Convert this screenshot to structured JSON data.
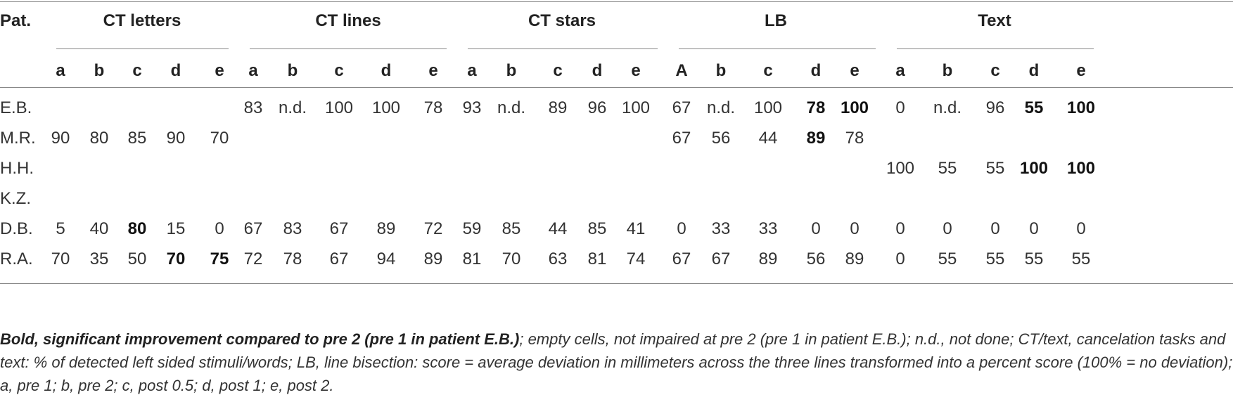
{
  "table": {
    "patient_header": "Pat.",
    "groups": [
      "CT letters",
      "CT lines",
      "CT stars",
      "LB",
      "Text"
    ],
    "subheaders": [
      [
        "a",
        "b",
        "c",
        "d",
        "e"
      ],
      [
        "a",
        "b",
        "c",
        "d",
        "e"
      ],
      [
        "a",
        "b",
        "c",
        "d",
        "e"
      ],
      [
        "A",
        "b",
        "c",
        "d",
        "e"
      ],
      [
        "a",
        "b",
        "c",
        "d",
        "e"
      ]
    ],
    "rows": [
      {
        "patient": "E.B.",
        "cells": [
          "",
          "",
          "",
          "",
          "",
          "83",
          "n.d.",
          "100",
          "100",
          "78",
          "93",
          "n.d.",
          "89",
          "96",
          "100",
          "67",
          "n.d.",
          "100",
          "78",
          "100",
          "0",
          "n.d.",
          "96",
          "55",
          "100"
        ],
        "bold": [
          18,
          19,
          23,
          24,
          29,
          32,
          34,
          37,
          38
        ]
      },
      {
        "patient": "M.R.",
        "cells": [
          "90",
          "80",
          "85",
          "90",
          "70",
          "",
          "",
          "",
          "",
          "",
          "",
          "",
          "",
          "",
          "",
          "67",
          "56",
          "44",
          "89",
          "78",
          "",
          "",
          "",
          "",
          ""
        ],
        "bold": [
          18
        ]
      },
      {
        "patient": "H.H.",
        "cells": [
          "",
          "",
          "",
          "",
          "",
          "",
          "",
          "",
          "",
          "",
          "",
          "",
          "",
          "",
          "",
          "",
          "",
          "",
          "",
          "",
          "100",
          "55",
          "55",
          "100",
          "100"
        ],
        "bold": [
          23,
          24
        ]
      },
      {
        "patient": "K.Z.",
        "cells": [
          "",
          "",
          "",
          "",
          "",
          "",
          "",
          "",
          "",
          "",
          "",
          "",
          "",
          "",
          "",
          "",
          "",
          "",
          "",
          "",
          "",
          "",
          "",
          "",
          ""
        ],
        "bold": []
      },
      {
        "patient": "D.B.",
        "cells": [
          "5",
          "40",
          "80",
          "15",
          "0",
          "67",
          "83",
          "67",
          "89",
          "72",
          "59",
          "85",
          "44",
          "85",
          "41",
          "0",
          "33",
          "33",
          "0",
          "0",
          "0",
          "0",
          "0",
          "0",
          "0"
        ],
        "bold": [
          2
        ]
      },
      {
        "patient": "R.A.",
        "cells": [
          "70",
          "35",
          "50",
          "70",
          "75",
          "72",
          "78",
          "67",
          "94",
          "89",
          "81",
          "70",
          "63",
          "81",
          "74",
          "67",
          "67",
          "89",
          "56",
          "89",
          "0",
          "55",
          "55",
          "55",
          "55"
        ],
        "bold": [
          3,
          4
        ]
      }
    ]
  },
  "caption": {
    "bold_part": "Bold, significant improvement compared to pre 2 (pre 1 in patient E.B.)",
    "rest": "; empty cells, not impaired at pre 2 (pre 1 in patient E.B.); n.d., not done; CT/text, cancelation tasks and text: % of detected left sided stimuli/words; LB, line bisection: score = average deviation in millimeters across the three lines transformed into a percent score (100% = no deviation); a, pre 1; b, pre 2; c, post 0.5; d, post 1; e, post 2."
  }
}
